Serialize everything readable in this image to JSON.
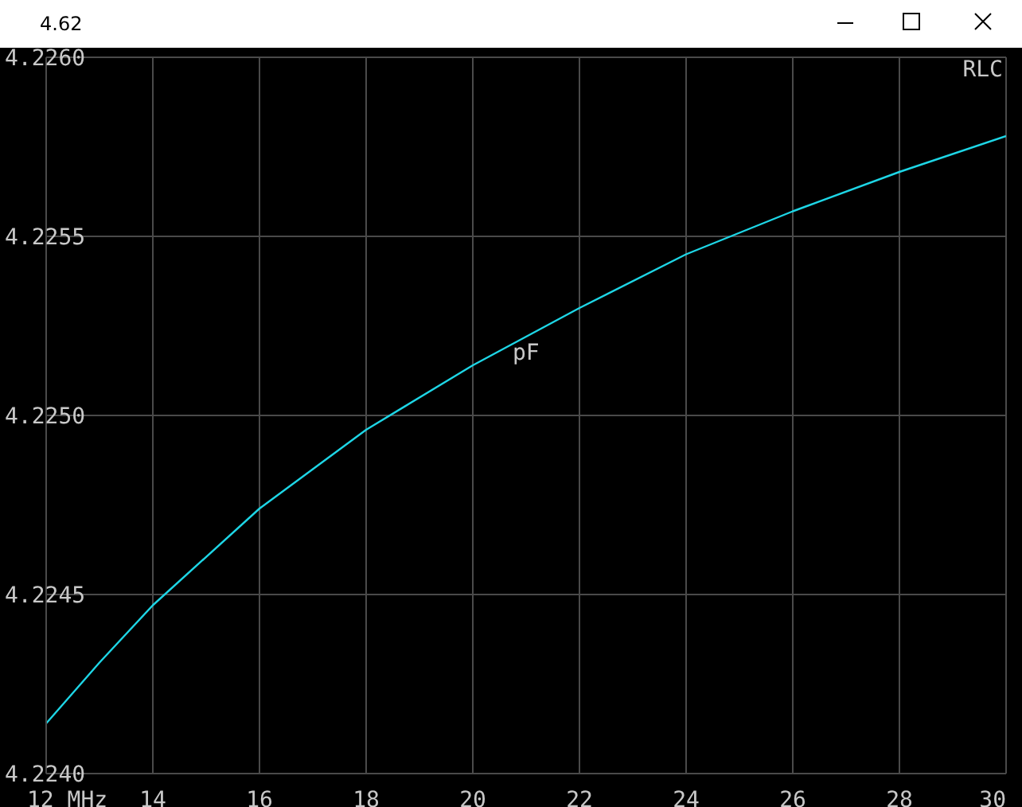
{
  "chart_data": {
    "type": "line",
    "title": "4.62",
    "ylabel": "pF",
    "annotations": [
      "RLC"
    ],
    "x": [
      12,
      13,
      14,
      16,
      18,
      20,
      22,
      24,
      26,
      28,
      30
    ],
    "series": [
      {
        "color": "#1ed6e6",
        "values": [
          4.22414,
          4.22431,
          4.22447,
          4.22474,
          4.22496,
          4.22514,
          4.2253,
          4.22545,
          4.22557,
          4.22568,
          4.22578
        ]
      }
    ],
    "xlim": [
      12,
      30
    ],
    "xticks": [
      {
        "value": 12,
        "label": "12 MHz"
      },
      14,
      16,
      18,
      20,
      22,
      24,
      26,
      28,
      30
    ],
    "ylim": [
      4.224,
      4.226
    ],
    "yticks": [
      {
        "value": 4.224,
        "label": "4.2240"
      },
      {
        "value": 4.2245,
        "label": "4.2245"
      },
      {
        "value": 4.225,
        "label": "4.2250"
      },
      {
        "value": 4.2255,
        "label": "4.2255"
      },
      {
        "value": 4.226,
        "label": "4.2260"
      }
    ],
    "grid": true,
    "legend": false,
    "marker": "none",
    "line_style": "solid"
  }
}
